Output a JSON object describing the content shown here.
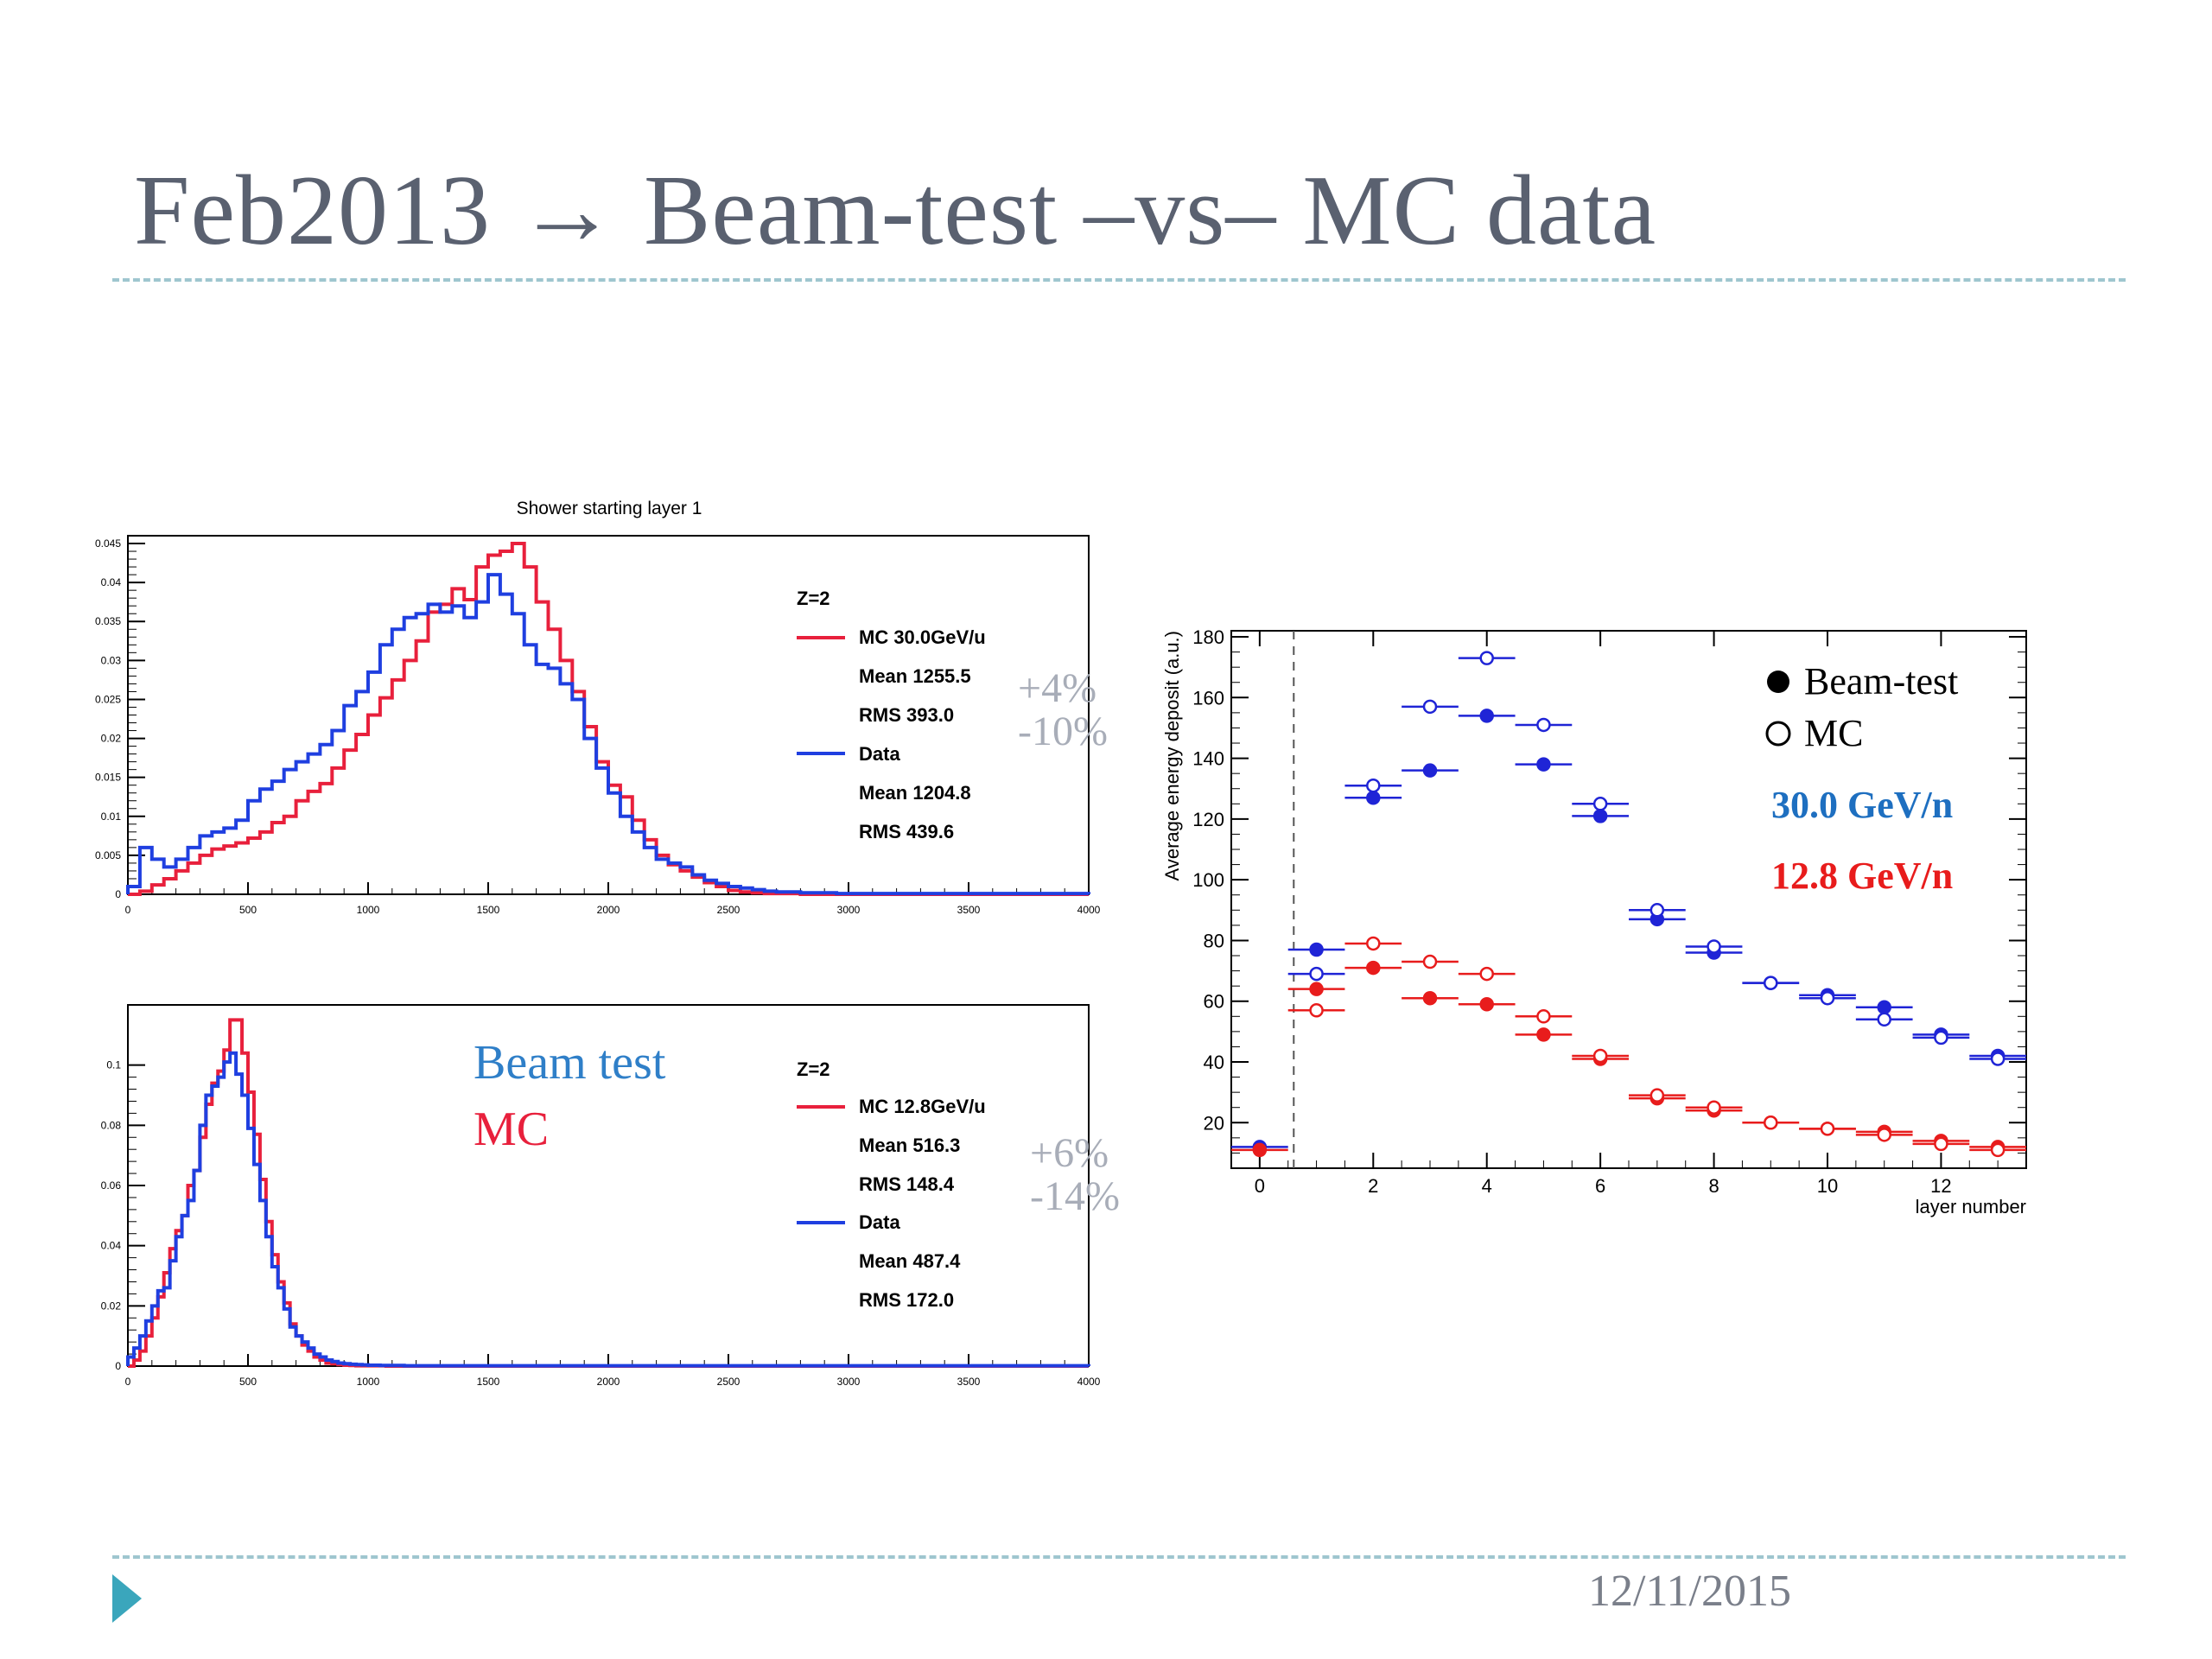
{
  "slide": {
    "title": "Feb2013 → Beam-test –vs– MC data",
    "date": "12/11/2015",
    "colors": {
      "title": "#5a6170",
      "rule": "#9fc6cf",
      "accent": "#3aa6bc"
    }
  },
  "chart_data": [
    {
      "type": "histogram",
      "title": "Shower starting layer 1",
      "xlim": [
        0,
        4000
      ],
      "ylim": [
        0,
        0.046
      ],
      "xticks": [
        0,
        500,
        1000,
        1500,
        2000,
        2500,
        3000,
        3500,
        4000
      ],
      "xtick_labels": [
        "0",
        "500",
        "1000",
        "1500",
        "2000",
        "2500",
        "3000",
        "3500",
        "4000"
      ],
      "yticks": [
        0,
        0.005,
        0.01,
        0.015,
        0.02,
        0.025,
        0.03,
        0.035,
        0.04,
        0.045
      ],
      "ytick_labels": [
        "0",
        "0.005",
        "0.01",
        "0.015",
        "0.02",
        "0.025",
        "0.03",
        "0.035",
        "0.04",
        "0.045"
      ],
      "legend": {
        "header": "Z=2",
        "entries": [
          {
            "label": "MC 30.0GeV/u",
            "mean": "Mean 1255.5",
            "rms": "RMS 393.0",
            "color": "#e8203c"
          },
          {
            "label": "Data",
            "mean": "Mean 1204.8",
            "rms": "RMS 439.6",
            "color": "#1f3fe0"
          }
        ]
      },
      "annotation": {
        "line1": "+4%",
        "line2": "-10%"
      },
      "bin_width": 50,
      "series": [
        {
          "name": "MC 30.0GeV/u",
          "color": "#e8203c",
          "values": [
            0,
            0.0004,
            0.0012,
            0.002,
            0.003,
            0.004,
            0.005,
            0.0058,
            0.0062,
            0.0066,
            0.0072,
            0.008,
            0.0092,
            0.01,
            0.012,
            0.0132,
            0.0142,
            0.0162,
            0.0185,
            0.0205,
            0.023,
            0.0252,
            0.0275,
            0.03,
            0.0325,
            0.0362,
            0.0372,
            0.0392,
            0.0378,
            0.042,
            0.0435,
            0.044,
            0.045,
            0.042,
            0.0375,
            0.034,
            0.03,
            0.026,
            0.0215,
            0.017,
            0.014,
            0.0125,
            0.0095,
            0.007,
            0.005,
            0.0038,
            0.003,
            0.0022,
            0.0015,
            0.001,
            0.0005,
            0.0003,
            0.0002,
            0.0001,
            0.0001,
            0.0001,
            0,
            0,
            0,
            0,
            0,
            0,
            0,
            0,
            0,
            0,
            0,
            0,
            0,
            0,
            0,
            0,
            0,
            0,
            0,
            0,
            0,
            0,
            0,
            0
          ]
        },
        {
          "name": "Data",
          "color": "#1f3fe0",
          "values": [
            0.001,
            0.006,
            0.0045,
            0.0035,
            0.0045,
            0.006,
            0.0075,
            0.008,
            0.0085,
            0.0095,
            0.012,
            0.0135,
            0.0145,
            0.016,
            0.017,
            0.018,
            0.0192,
            0.021,
            0.0242,
            0.026,
            0.0285,
            0.032,
            0.034,
            0.0355,
            0.036,
            0.0372,
            0.0362,
            0.037,
            0.0355,
            0.0375,
            0.041,
            0.0385,
            0.036,
            0.032,
            0.0295,
            0.029,
            0.027,
            0.025,
            0.02,
            0.0162,
            0.013,
            0.01,
            0.008,
            0.006,
            0.0045,
            0.004,
            0.0035,
            0.0025,
            0.0018,
            0.0014,
            0.001,
            0.0008,
            0.0006,
            0.0004,
            0.0003,
            0.0003,
            0.0002,
            0.0002,
            0.0002,
            0.0001,
            0.0001,
            0.0001,
            0.0001,
            0.0001,
            0.0001,
            0.0001,
            0.0001,
            0.0001,
            0.0001,
            0.0001,
            0.0001,
            0.0001,
            0.0001,
            0.0001,
            0.0001,
            0.0001,
            0.0001,
            0.0001,
            0.0001,
            0.0001
          ]
        }
      ]
    },
    {
      "type": "histogram",
      "title": "",
      "xlim": [
        0,
        4000
      ],
      "ylim": [
        0,
        0.12
      ],
      "xticks": [
        0,
        500,
        1000,
        1500,
        2000,
        2500,
        3000,
        3500,
        4000
      ],
      "xtick_labels": [
        "0",
        "500",
        "1000",
        "1500",
        "2000",
        "2500",
        "3000",
        "3500",
        "4000"
      ],
      "yticks": [
        0,
        0.02,
        0.04,
        0.06,
        0.08,
        0.1
      ],
      "ytick_labels": [
        "0",
        "0.02",
        "0.04",
        "0.06",
        "0.08",
        "0.1"
      ],
      "legend": {
        "header": "Z=2",
        "entries": [
          {
            "label": "MC 12.8GeV/u",
            "mean": "Mean 516.3",
            "rms": "RMS 148.4",
            "color": "#e8203c"
          },
          {
            "label": "Data",
            "mean": "Mean 487.4",
            "rms": "RMS 172.0",
            "color": "#1f3fe0"
          }
        ]
      },
      "annotation": {
        "line1": "+6%",
        "line2": "-14%"
      },
      "side_labels": {
        "beam": "Beam test",
        "beam_color": "#2f7fc8",
        "mc": "MC",
        "mc_color": "#e8203c"
      },
      "bin_width": 25,
      "series": [
        {
          "name": "MC 12.8GeV/u",
          "color": "#e8203c",
          "values": [
            0,
            0.002,
            0.005,
            0.01,
            0.016,
            0.023,
            0.031,
            0.039,
            0.045,
            0.05,
            0.06,
            0.065,
            0.076,
            0.087,
            0.094,
            0.098,
            0.105,
            0.115,
            0.115,
            0.104,
            0.091,
            0.077,
            0.062,
            0.048,
            0.037,
            0.028,
            0.021,
            0.014,
            0.01,
            0.007,
            0.005,
            0.003,
            0.002,
            0.001,
            0.0008,
            0.0005,
            0.0003,
            0.0002,
            0.0001,
            0.0001,
            0.0001,
            0.0001,
            0.0001,
            0,
            0,
            0,
            0,
            0,
            0,
            0,
            0,
            0,
            0,
            0,
            0,
            0,
            0,
            0,
            0,
            0,
            0,
            0,
            0,
            0,
            0,
            0,
            0,
            0,
            0,
            0,
            0,
            0,
            0,
            0,
            0,
            0,
            0,
            0,
            0,
            0,
            0,
            0,
            0,
            0,
            0,
            0,
            0,
            0,
            0,
            0,
            0,
            0,
            0,
            0,
            0,
            0,
            0,
            0,
            0,
            0,
            0,
            0,
            0,
            0,
            0,
            0,
            0,
            0,
            0,
            0,
            0,
            0,
            0,
            0,
            0,
            0,
            0,
            0,
            0,
            0,
            0,
            0,
            0,
            0,
            0,
            0,
            0,
            0,
            0,
            0,
            0,
            0,
            0,
            0,
            0,
            0,
            0,
            0,
            0,
            0,
            0,
            0,
            0,
            0,
            0,
            0,
            0,
            0,
            0,
            0,
            0,
            0,
            0,
            0
          ]
        },
        {
          "name": "Data",
          "color": "#1f3fe0",
          "values": [
            0.003,
            0.006,
            0.01,
            0.015,
            0.02,
            0.025,
            0.026,
            0.035,
            0.043,
            0.05,
            0.055,
            0.065,
            0.08,
            0.09,
            0.093,
            0.096,
            0.101,
            0.104,
            0.097,
            0.09,
            0.079,
            0.067,
            0.055,
            0.043,
            0.033,
            0.026,
            0.019,
            0.013,
            0.01,
            0.008,
            0.006,
            0.004,
            0.003,
            0.002,
            0.0015,
            0.001,
            0.0008,
            0.0006,
            0.0005,
            0.0004,
            0.0003,
            0.0003,
            0.0002,
            0.0002,
            0.0002,
            0.0002,
            0.0001,
            0.0001,
            0.0001,
            0.0001,
            0.0001,
            0.0001,
            0.0001,
            0.0001,
            0.0001,
            0.0001,
            0.0001,
            0.0001,
            0.0001,
            0.0001,
            0.0001,
            0.0001,
            0.0001,
            0.0001,
            0.0001,
            0.0001,
            0.0001,
            0.0001,
            0.0001,
            0.0001,
            0.0001,
            0.0001,
            0.0001,
            0.0001,
            0.0001,
            0.0001,
            0.0001,
            0.0001,
            0.0001,
            0.0001,
            0.0001,
            0.0001,
            0.0001,
            0.0001,
            0.0001,
            0.0001,
            0.0001,
            0.0001,
            0.0001,
            0.0001,
            0.0001,
            0.0001,
            0.0001,
            0.0001,
            0.0001,
            0.0001,
            0.0001,
            0.0001,
            0.0001,
            0.0001,
            0.0001,
            0.0001,
            0.0001,
            0.0001,
            0.0001,
            0.0001,
            0.0001,
            0.0001,
            0.0001,
            0.0001,
            0.0001,
            0.0001,
            0.0001,
            0.0001,
            0.0001,
            0.0001,
            0.0001,
            0.0001,
            0.0001,
            0.0001,
            0.0001,
            0.0001,
            0.0001,
            0.0001,
            0.0001,
            0.0001,
            0.0001,
            0.0001,
            0.0001,
            0.0001,
            0.0001,
            0.0001,
            0.0001,
            0.0001,
            0.0001,
            0.0001,
            0.0001,
            0.0001,
            0.0001,
            0.0001,
            0.0001,
            0.0001,
            0.0001,
            0.0001,
            0.0001,
            0.0001,
            0.0001,
            0.0001,
            0.0001,
            0.0001,
            0.0001,
            0.0001,
            0.0001,
            0.0001,
            0.0001,
            0.0001,
            0.0001,
            0.0001,
            0.0001,
            0.0001
          ]
        }
      ]
    },
    {
      "type": "scatter",
      "title": "",
      "xlabel": "layer number",
      "ylabel": "Average energy deposit (a.u.)",
      "xlim": [
        -0.5,
        13.5
      ],
      "ylim": [
        5,
        182
      ],
      "xticks": [
        0,
        2,
        4,
        6,
        8,
        10,
        12
      ],
      "xtick_labels": [
        "0",
        "2",
        "4",
        "6",
        "8",
        "10",
        "12"
      ],
      "yticks": [
        20,
        40,
        60,
        80,
        100,
        120,
        140,
        160,
        180
      ],
      "ytick_labels": [
        "20",
        "40",
        "60",
        "80",
        "100",
        "120",
        "140",
        "160",
        "180"
      ],
      "dashed_vline_x": 0.6,
      "legend": {
        "beam": "Beam-test",
        "mc": "MC",
        "energy_high": "30.0 GeV/n",
        "energy_high_color": "#1e6fc0",
        "energy_low": "12.8 GeV/n",
        "energy_low_color": "#e81c1c"
      },
      "series": [
        {
          "name": "30.0 GeV/n Beam-test",
          "color": "#1f24d6",
          "filled": true,
          "x": [
            0,
            1,
            2,
            3,
            4,
            5,
            6,
            7,
            8,
            9,
            10,
            11,
            12,
            13
          ],
          "y": [
            12,
            77,
            127,
            136,
            154,
            138,
            121,
            87,
            76,
            66,
            62,
            58,
            49,
            42
          ]
        },
        {
          "name": "30.0 GeV/n MC",
          "color": "#1f24d6",
          "filled": false,
          "x": [
            1,
            2,
            3,
            4,
            5,
            6,
            7,
            8,
            9,
            10,
            11,
            12,
            13
          ],
          "y": [
            69,
            131,
            157,
            173,
            151,
            125,
            90,
            78,
            66,
            61,
            54,
            48,
            41
          ]
        },
        {
          "name": "12.8 GeV/n Beam-test",
          "color": "#e81c1c",
          "filled": true,
          "x": [
            0,
            1,
            2,
            3,
            4,
            5,
            6,
            7,
            8,
            9,
            10,
            11,
            12,
            13
          ],
          "y": [
            11,
            64,
            71,
            61,
            59,
            49,
            41,
            28,
            24,
            20,
            18,
            17,
            14,
            12
          ]
        },
        {
          "name": "12.8 GeV/n MC",
          "color": "#e81c1c",
          "filled": false,
          "x": [
            1,
            2,
            3,
            4,
            5,
            6,
            7,
            8,
            9,
            10,
            11,
            12,
            13
          ],
          "y": [
            57,
            79,
            73,
            69,
            55,
            42,
            29,
            25,
            20,
            18,
            16,
            13,
            11
          ]
        }
      ]
    }
  ]
}
